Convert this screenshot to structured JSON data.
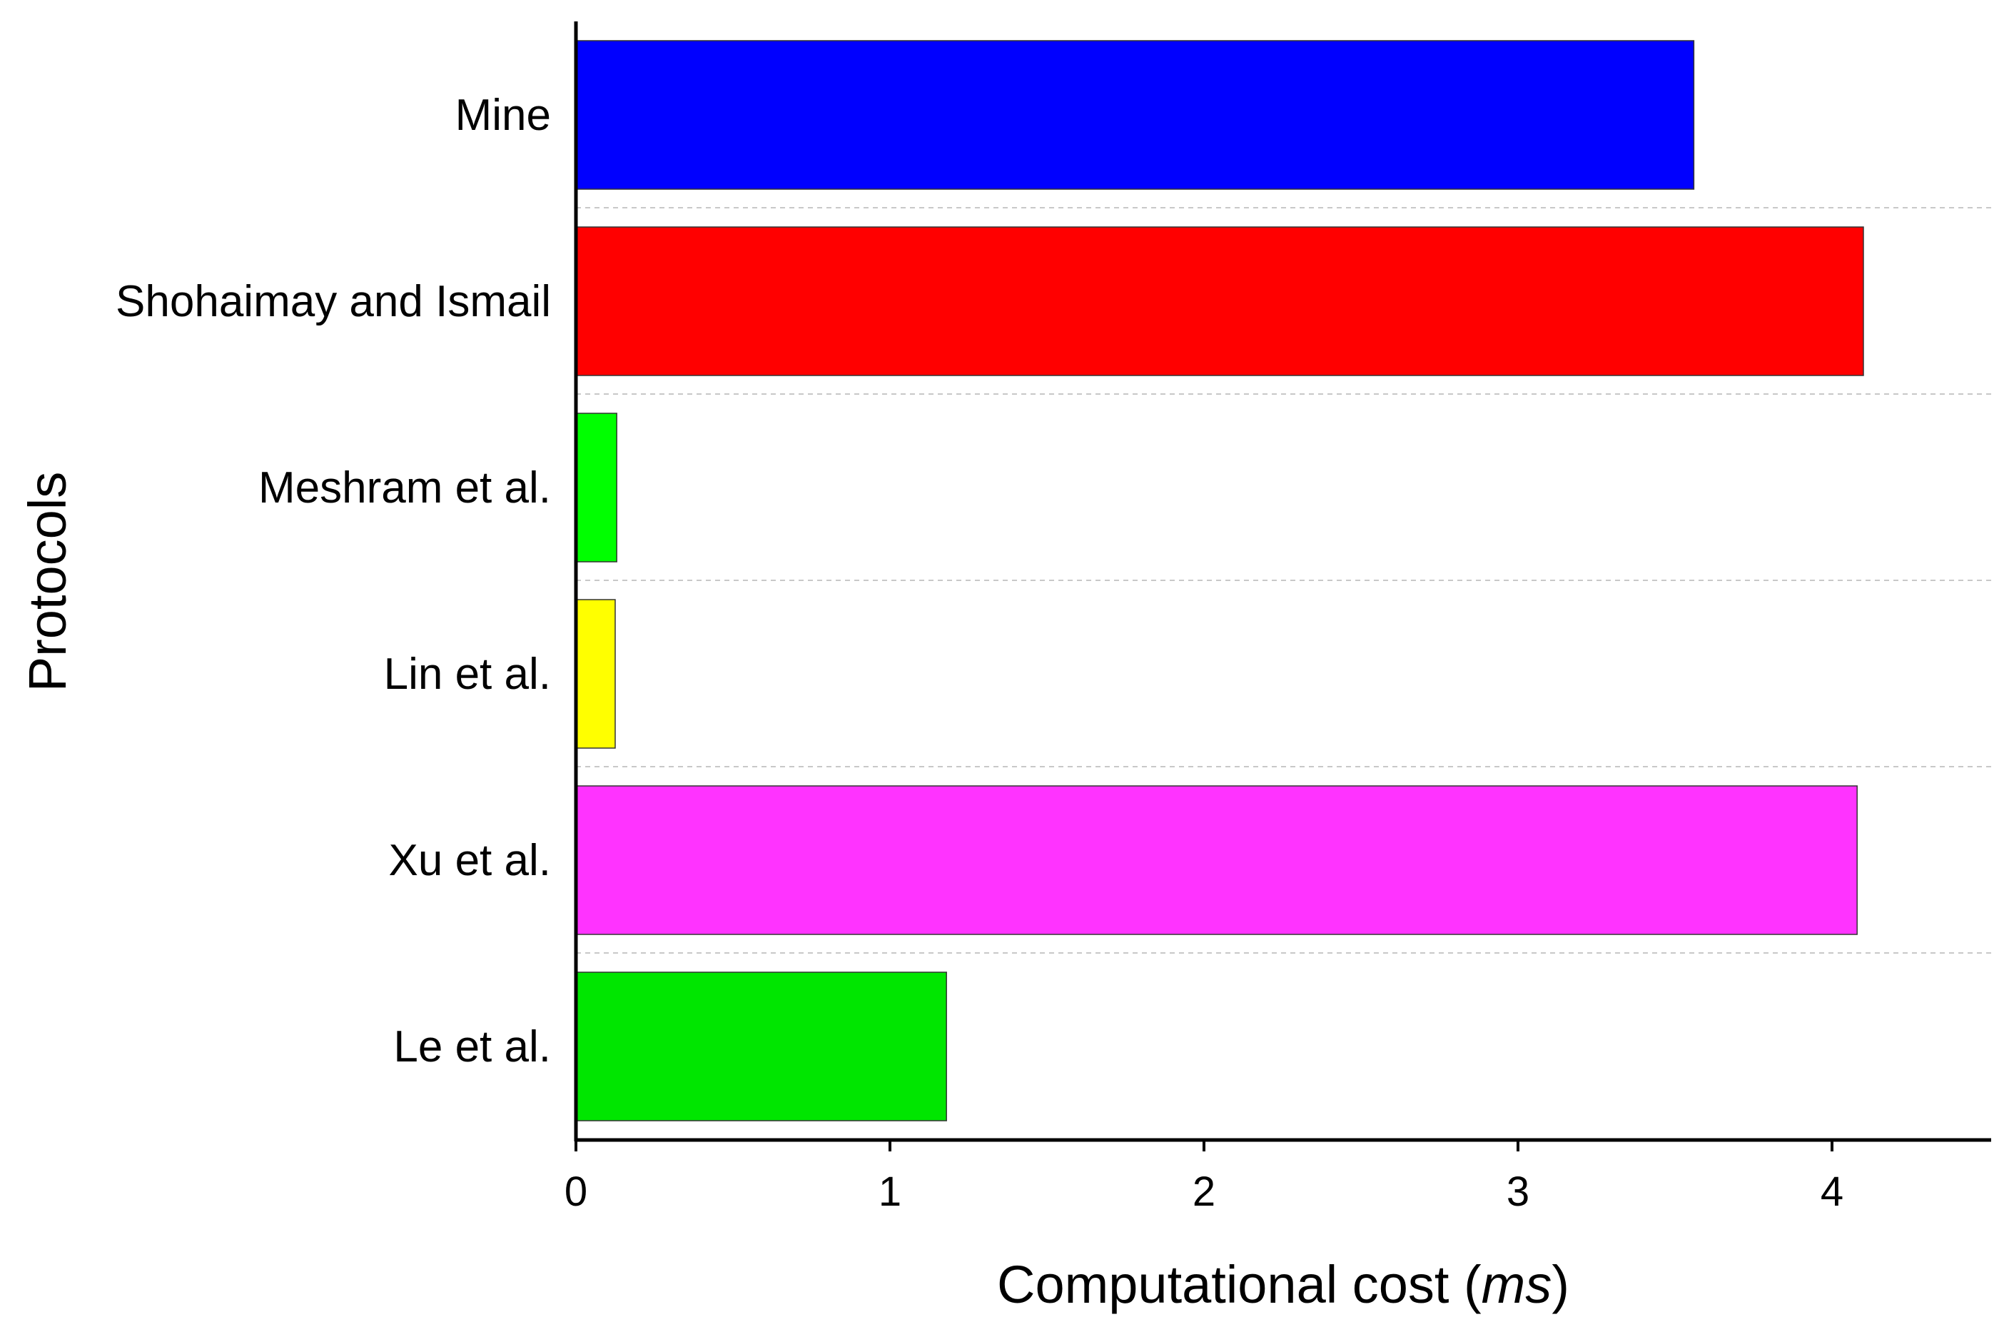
{
  "chart_data": {
    "type": "bar",
    "orientation": "horizontal",
    "categories": [
      "Mine",
      "Shohaimay and Ismail",
      "Meshram et al.",
      "Lin et al.",
      "Xu et al.",
      "Le et al."
    ],
    "values": [
      3.56,
      4.1,
      0.13,
      0.125,
      4.08,
      1.18
    ],
    "colors": [
      "#0000ff",
      "#ff0000",
      "#00ff00",
      "#ffff00",
      "#ff33ff",
      "#00e600"
    ],
    "xlabel": "Computational cost",
    "xlabel_unit": "ms",
    "ylabel": "Protocols",
    "xlim": [
      0,
      4.5
    ],
    "xticks": [
      "0",
      "1",
      "2",
      "3",
      "4"
    ],
    "grid": "horizontal dashed separators",
    "legend": "none"
  }
}
